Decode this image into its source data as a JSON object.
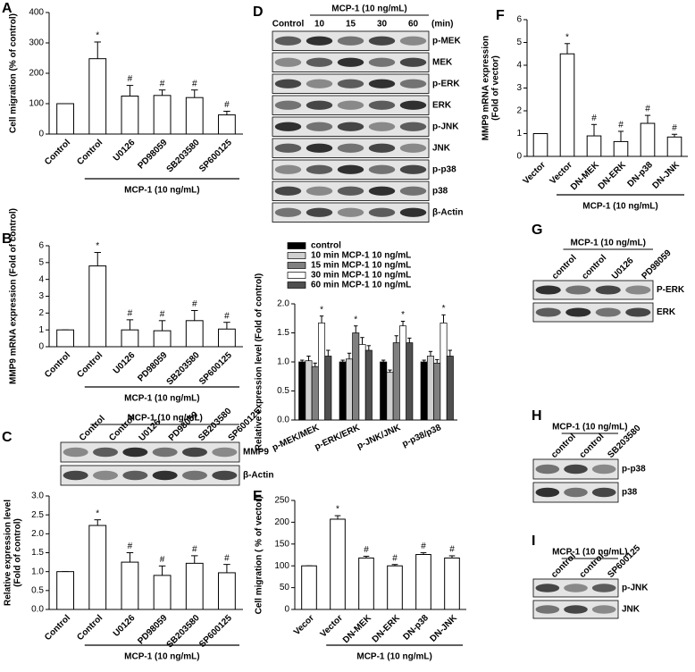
{
  "chart_data": [
    {
      "type": "bar",
      "panel": "A",
      "ylabel": [
        "Cell migration (% of control)"
      ],
      "categories": [
        "Control",
        "Control",
        "U0126",
        "PD98059",
        "SB203580",
        "SP600125"
      ],
      "values": [
        100,
        248,
        125,
        127,
        120,
        63
      ],
      "errors": [
        0,
        55,
        35,
        18,
        25,
        12
      ],
      "annotations": [
        null,
        "*",
        "#",
        "#",
        "#",
        "#"
      ],
      "group_label": "MCP-1 (10 ng/mL)",
      "color": "#ffffff",
      "ylim": [
        0,
        400
      ],
      "yticks": [
        0,
        100,
        200,
        300,
        400
      ]
    },
    {
      "type": "bar",
      "panel": "B",
      "ylabel": [
        "MMP9 mRNA expression (Fold of control)"
      ],
      "categories": [
        "Control",
        "Control",
        "U0126",
        "PD98059",
        "SB203580",
        "SP600125"
      ],
      "values": [
        1,
        4.8,
        1.0,
        0.95,
        1.55,
        1.05
      ],
      "errors": [
        0,
        0.8,
        0.6,
        0.6,
        0.6,
        0.4
      ],
      "annotations": [
        null,
        "*",
        "#",
        "#",
        "#",
        "#"
      ],
      "group_label": "MCP-1 (10 ng/mL)",
      "color": "#ffffff",
      "ylim": [
        0,
        6
      ],
      "yticks": [
        0,
        1,
        2,
        3,
        4,
        5,
        6
      ]
    },
    {
      "type": "bar",
      "panel": "C",
      "ylabel": [
        "Relative expression level",
        "(Fold of control)"
      ],
      "categories": [
        "Control",
        "Control",
        "U0126",
        "PD98059",
        "SB203580",
        "SP600125"
      ],
      "values": [
        1,
        2.22,
        1.25,
        0.9,
        1.22,
        0.97
      ],
      "errors": [
        0,
        0.15,
        0.25,
        0.25,
        0.2,
        0.22
      ],
      "annotations": [
        null,
        "*",
        "#",
        "#",
        "#",
        "#"
      ],
      "group_label": "MCP-1 (10 ng/mL)",
      "color": "#ffffff",
      "ylim": [
        0,
        3
      ],
      "yticks": [
        {
          "value": 0,
          "label": "0.0"
        },
        0.5,
        {
          "value": 1,
          "label": "1.0"
        },
        1.5,
        {
          "value": 2,
          "label": "2.0"
        },
        2.5,
        {
          "value": 3,
          "label": "3.0"
        }
      ]
    },
    {
      "type": "grouped_bar",
      "panel": "D",
      "ylabel": [
        "Relative expression level (Fold of control)"
      ],
      "categories": [
        "p-MEK/MEK",
        "p-ERK/ERK",
        "p-JNK/JNK",
        "p-p38/p38"
      ],
      "series": [
        {
          "name": "control",
          "color": "#000000",
          "values": [
            1.0,
            1.0,
            1.0,
            1.0
          ],
          "errors": [
            0.03,
            0.03,
            0.03,
            0.03
          ],
          "annotations": [
            null,
            null,
            null,
            null
          ]
        },
        {
          "name": "10 min MCP-1 10 ng/mL",
          "color": "#d0d0d0",
          "values": [
            1.02,
            1.05,
            0.82,
            1.1
          ],
          "errors": [
            0.08,
            0.1,
            0.04,
            0.08
          ],
          "annotations": [
            null,
            null,
            null,
            null
          ]
        },
        {
          "name": "15 min MCP-1 10 ng/mL",
          "color": "#808080",
          "values": [
            0.92,
            1.5,
            1.33,
            0.98
          ],
          "errors": [
            0.06,
            0.12,
            0.12,
            0.06
          ],
          "annotations": [
            null,
            "*",
            null,
            null
          ]
        },
        {
          "name": "30 min MCP-1 10 ng/mL",
          "color": "#ffffff",
          "values": [
            1.67,
            1.3,
            1.62,
            1.67
          ],
          "errors": [
            0.12,
            0.12,
            0.08,
            0.14
          ],
          "annotations": [
            "*",
            null,
            "*",
            "*"
          ]
        },
        {
          "name": "60 min MCP-1 10 ng/mL",
          "color": "#505050",
          "values": [
            1.1,
            1.2,
            1.33,
            1.1
          ],
          "errors": [
            0.1,
            0.08,
            0.08,
            0.1
          ],
          "annotations": [
            null,
            null,
            null,
            null
          ]
        }
      ],
      "ylim": [
        0,
        2
      ],
      "yticks": [
        {
          "value": 0,
          "label": "0.0"
        },
        0.5,
        {
          "value": 1,
          "label": "1.0"
        },
        1.5,
        {
          "value": 2,
          "label": "2.0"
        }
      ]
    },
    {
      "type": "bar",
      "panel": "E",
      "ylabel": [
        "Cell migration ( % of vector)"
      ],
      "categories": [
        "Vecor",
        "Vector",
        "DN-MEK",
        "DN-ERK",
        "DN-p38",
        "DN-JNK"
      ],
      "values": [
        100,
        207,
        118,
        100,
        126,
        118
      ],
      "errors": [
        0,
        8,
        4,
        3,
        4,
        5
      ],
      "annotations": [
        null,
        "*",
        "#",
        "#",
        "#",
        "#"
      ],
      "group_label": "MCP-1 (10 ng/mL)",
      "color": "#ffffff",
      "ylim": [
        0,
        250
      ],
      "yticks": [
        0,
        50,
        100,
        150,
        200,
        250
      ]
    },
    {
      "type": "bar",
      "panel": "F",
      "ylabel": [
        "MMP9 mRNA expression",
        "(Fold of vector)"
      ],
      "categories": [
        "Vector",
        "Vector",
        "DN-MEK",
        "DN-ERK",
        "DN-p38",
        "DN-JNK"
      ],
      "values": [
        1,
        4.5,
        0.9,
        0.65,
        1.45,
        0.85
      ],
      "errors": [
        0,
        0.45,
        0.5,
        0.45,
        0.35,
        0.12
      ],
      "annotations": [
        null,
        "*",
        "#",
        "#",
        "#",
        "#"
      ],
      "group_label": "MCP-1 (10 ng/mL)",
      "color": "#ffffff",
      "ylim": [
        0,
        6
      ],
      "yticks": [
        0,
        1,
        2,
        3,
        4,
        5,
        6
      ]
    }
  ],
  "blots": [
    {
      "header": "MCP-1 (10 ng/mL)",
      "lanes": [
        "Control",
        "Control",
        "U0126",
        "PD98059",
        "SB203580",
        "SP600125"
      ],
      "bands": [
        "MMP9",
        "β-Actin"
      ]
    },
    {
      "header": "MCP-1 (10 ng/mL)",
      "lanes": [
        "Control",
        "10",
        "15",
        "30",
        "60"
      ],
      "time_unit": "(min)",
      "bands": [
        "p-MEK",
        "MEK",
        "p-ERK",
        "ERK",
        "p-JNK",
        "JNK",
        "p-p38",
        "p38",
        "β-Actin"
      ]
    },
    {
      "panel": "G",
      "header": "MCP-1 (10 ng/mL)",
      "lanes": [
        "control",
        "control",
        "U0126",
        "PD98059"
      ],
      "bands": [
        "P-ERK",
        "ERK"
      ]
    },
    {
      "panel": "H",
      "header": "MCP-1 (10 ng/mL)",
      "lanes": [
        "control",
        "control",
        "SB203580"
      ],
      "bands": [
        "p-p38",
        "p38"
      ]
    },
    {
      "panel": "I",
      "header": "MCP-1 (10 ng/mL)",
      "lanes": [
        "control",
        "control",
        "SP600125"
      ],
      "bands": [
        "p-JNK",
        "JNK"
      ]
    }
  ]
}
